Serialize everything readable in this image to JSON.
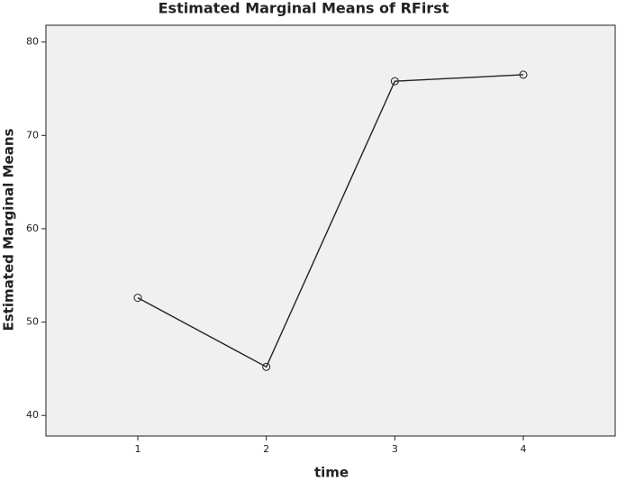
{
  "chart_data": {
    "type": "line",
    "title": "Estimated Marginal Means of RFirst",
    "x_label": "time",
    "y_label": "Estimated Marginal Means",
    "categories": [
      "1",
      "2",
      "3",
      "4"
    ],
    "values": [
      52.6,
      45.2,
      75.8,
      76.5
    ],
    "color": "#222222",
    "ylim": [
      37.8,
      81.8
    ],
    "yticks": [
      40,
      50,
      60,
      70,
      80
    ],
    "grid": false
  }
}
